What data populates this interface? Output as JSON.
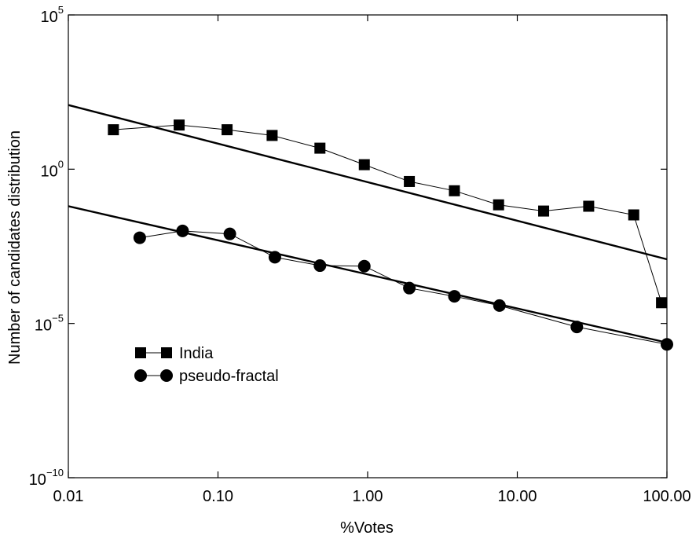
{
  "chart_data": {
    "type": "scatter",
    "title": "",
    "xlabel": "%Votes",
    "ylabel": "Number of candidates distribution",
    "xscale": "log",
    "yscale": "log",
    "xlim": [
      0.01,
      100
    ],
    "ylim": [
      1e-10,
      100000
    ],
    "grid": false,
    "legend_position": "left",
    "x_ticks": [
      {
        "value": 0.01,
        "label": "0.01"
      },
      {
        "value": 0.1,
        "label": "0.10"
      },
      {
        "value": 1,
        "label": "1.00"
      },
      {
        "value": 10,
        "label": "10.00"
      },
      {
        "value": 100,
        "label": "100.00"
      }
    ],
    "y_ticks": [
      {
        "value": 1e-10,
        "base": "10",
        "exp": "−10"
      },
      {
        "value": 1e-05,
        "base": "10",
        "exp": "−5"
      },
      {
        "value": 1,
        "base": "10",
        "exp": "0"
      },
      {
        "value": 100000,
        "base": "10",
        "exp": "5"
      }
    ],
    "series": [
      {
        "name": "India",
        "marker": "square",
        "points": [
          [
            0.02,
            19
          ],
          [
            0.055,
            27
          ],
          [
            0.115,
            19
          ],
          [
            0.23,
            12.4
          ],
          [
            0.48,
            4.8
          ],
          [
            0.95,
            1.4
          ],
          [
            1.9,
            0.4
          ],
          [
            3.8,
            0.2
          ],
          [
            7.5,
            0.07
          ],
          [
            15,
            0.044
          ],
          [
            30,
            0.063
          ],
          [
            60,
            0.033
          ],
          [
            92,
            4.7e-05
          ]
        ],
        "fit": [
          [
            0.01,
            120
          ],
          [
            100,
            0.0012
          ]
        ]
      },
      {
        "name": "pseudo-fractal",
        "marker": "circle",
        "points": [
          [
            0.03,
            0.006
          ],
          [
            0.058,
            0.01
          ],
          [
            0.12,
            0.008
          ],
          [
            0.24,
            0.0014
          ],
          [
            0.48,
            0.00075
          ],
          [
            0.95,
            0.00072
          ],
          [
            1.9,
            0.00014
          ],
          [
            3.8,
            7.6e-05
          ],
          [
            7.6,
            3.8e-05
          ],
          [
            25,
            7.7e-06
          ],
          [
            100,
            2.1e-06
          ]
        ],
        "fit": [
          [
            0.01,
            0.063
          ],
          [
            100,
            2.4e-06
          ]
        ]
      }
    ]
  }
}
